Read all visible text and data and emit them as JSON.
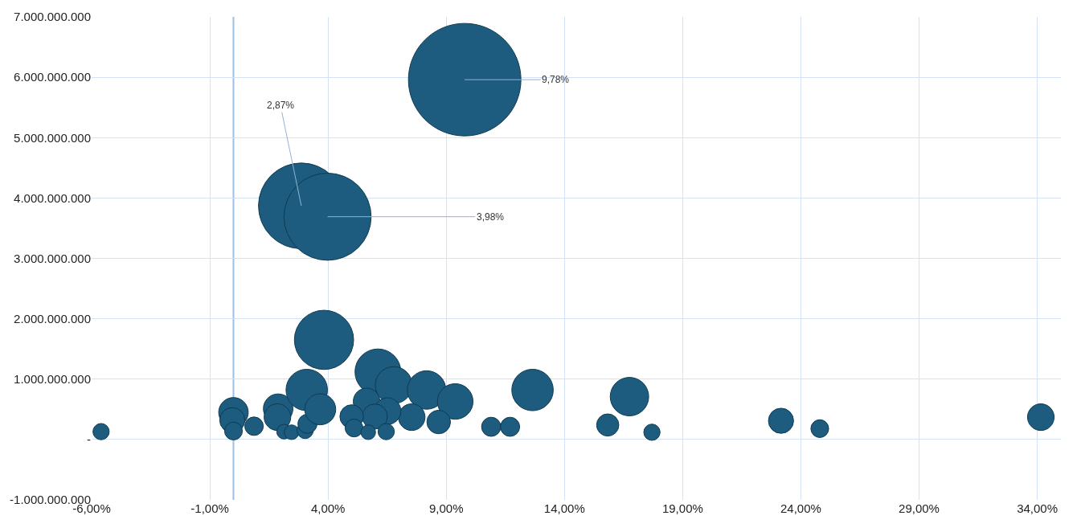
{
  "chart_data": {
    "type": "bubble",
    "color": "#1d5c7e",
    "marker": "circle",
    "grid": true,
    "legend": false,
    "x": [
      -5.6,
      0.0,
      -0.05,
      0.0,
      0.87,
      1.89,
      1.86,
      2.14,
      2.46,
      3.03,
      3.13,
      3.1,
      3.67,
      3.83,
      2.87,
      3.98,
      9.78,
      6.11,
      6.78,
      8.17,
      9.38,
      12.65,
      16.75,
      15.83,
      17.7,
      10.9,
      11.7,
      8.68,
      7.54,
      5.63,
      6.52,
      5.98,
      5.0,
      5.1,
      5.7,
      6.46,
      23.16,
      24.8,
      34.15
    ],
    "values": [
      130000000,
      450000000,
      320000000,
      140000000,
      220000000,
      510000000,
      370000000,
      130000000,
      120000000,
      150000000,
      260000000,
      820000000,
      500000000,
      1650000000,
      3870000000,
      3690000000,
      5960000000,
      1120000000,
      900000000,
      820000000,
      630000000,
      820000000,
      710000000,
      240000000,
      120000000,
      210000000,
      210000000,
      290000000,
      370000000,
      630000000,
      470000000,
      380000000,
      380000000,
      190000000,
      120000000,
      130000000,
      310000000,
      180000000,
      370000000
    ],
    "sizes": [
      0.021,
      0.069,
      0.05,
      0.025,
      0.027,
      0.069,
      0.056,
      0.017,
      0.017,
      0.021,
      0.029,
      0.136,
      0.076,
      0.277,
      0.58,
      0.6,
      1,
      0.166,
      0.108,
      0.117,
      0.1,
      0.136,
      0.117,
      0.039,
      0.021,
      0.029,
      0.029,
      0.044,
      0.056,
      0.056,
      0.056,
      0.05,
      0.044,
      0.025,
      0.017,
      0.021,
      0.05,
      0.025,
      0.056
    ],
    "annotations": [
      {
        "text": "2,87%",
        "x": 2.87,
        "y": 3870000000
      },
      {
        "text": "3,98%",
        "x": 3.98,
        "y": 3690000000
      },
      {
        "text": "9,78%",
        "x": 9.78,
        "y": 5960000000
      }
    ],
    "ref_lines": [
      {
        "axis": "x",
        "value": 0,
        "color": "#9dbfe0"
      }
    ],
    "xlim": [
      -6,
      35
    ],
    "xticks": [
      {
        "value": -6,
        "label": "-6,00%"
      },
      {
        "value": -1,
        "label": "-1,00%"
      },
      {
        "value": 4,
        "label": "4,00%"
      },
      {
        "value": 9,
        "label": "9,00%"
      },
      {
        "value": 14,
        "label": "14,00%"
      },
      {
        "value": 19,
        "label": "19,00%"
      },
      {
        "value": 24,
        "label": "24,00%"
      },
      {
        "value": 29,
        "label": "29,00%"
      },
      {
        "value": 34,
        "label": "34,00%"
      }
    ],
    "ylim": [
      -1000000000,
      7000000000
    ],
    "yticks": [
      {
        "value": -1000000000,
        "label": "-1.000.000.000"
      },
      {
        "value": 0,
        "label": "-"
      },
      {
        "value": 1000000000,
        "label": "1.000.000.000"
      },
      {
        "value": 2000000000,
        "label": "2.000.000.000"
      },
      {
        "value": 3000000000,
        "label": "3.000.000.000"
      },
      {
        "value": 4000000000,
        "label": "4.000.000.000"
      },
      {
        "value": 5000000000,
        "label": "5.000.000.000"
      },
      {
        "value": 6000000000,
        "label": "6.000.000.000"
      },
      {
        "value": 7000000000,
        "label": "7.000.000.000"
      }
    ]
  }
}
